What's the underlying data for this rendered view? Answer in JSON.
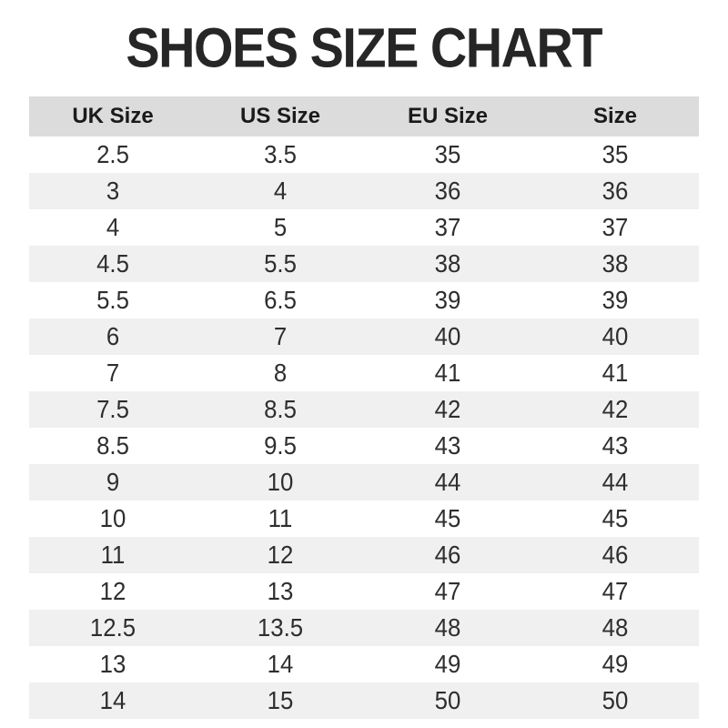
{
  "title": "SHOES SIZE CHART",
  "colors": {
    "page_bg": "#ffffff",
    "title_color": "#262626",
    "header_bg": "#dcdcdc",
    "header_text": "#1a1a1a",
    "row_bg": "#ffffff",
    "row_alt_bg": "#f0f0f0",
    "cell_text": "#2e2e2e"
  },
  "chart_data": {
    "type": "table",
    "title": "SHOES SIZE CHART",
    "columns": [
      "UK Size",
      "US Size",
      "EU Size",
      "Size"
    ],
    "rows": [
      [
        "2.5",
        "3.5",
        "35",
        "35"
      ],
      [
        "3",
        "4",
        "36",
        "36"
      ],
      [
        "4",
        "5",
        "37",
        "37"
      ],
      [
        "4.5",
        "5.5",
        "38",
        "38"
      ],
      [
        "5.5",
        "6.5",
        "39",
        "39"
      ],
      [
        "6",
        "7",
        "40",
        "40"
      ],
      [
        "7",
        "8",
        "41",
        "41"
      ],
      [
        "7.5",
        "8.5",
        "42",
        "42"
      ],
      [
        "8.5",
        "9.5",
        "43",
        "43"
      ],
      [
        "9",
        "10",
        "44",
        "44"
      ],
      [
        "10",
        "11",
        "45",
        "45"
      ],
      [
        "11",
        "12",
        "46",
        "46"
      ],
      [
        "12",
        "13",
        "47",
        "47"
      ],
      [
        "12.5",
        "13.5",
        "48",
        "48"
      ],
      [
        "13",
        "14",
        "49",
        "49"
      ],
      [
        "14",
        "15",
        "50",
        "50"
      ]
    ],
    "layout": {
      "alternating_rows": true,
      "first_row_background": "white",
      "grid": false,
      "legend": "none"
    }
  }
}
